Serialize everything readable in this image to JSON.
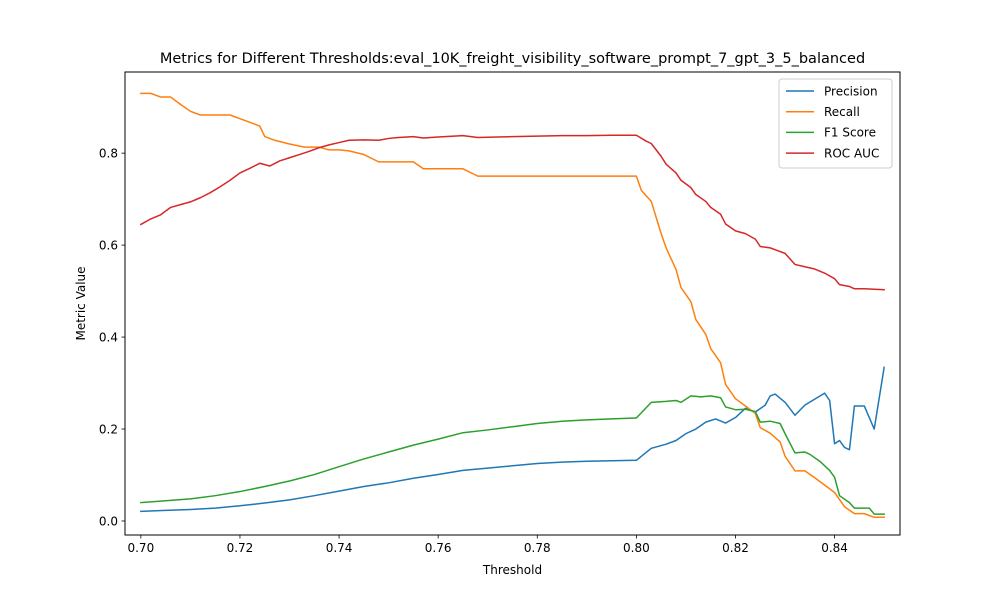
{
  "chart_data": {
    "type": "line",
    "title": "Metrics for Different Thresholds:eval_10K_freight_visibility_software_prompt_7_gpt_3_5_balanced",
    "xlabel": "Threshold",
    "ylabel": "Metric Value",
    "xlim": [
      0.6968,
      0.8532
    ],
    "ylim": [
      -0.0305,
      0.9765
    ],
    "xticks": [
      0.7,
      0.72,
      0.74,
      0.76,
      0.78,
      0.8,
      0.82,
      0.84
    ],
    "xtick_labels": [
      "0.70",
      "0.72",
      "0.74",
      "0.76",
      "0.78",
      "0.80",
      "0.82",
      "0.84"
    ],
    "yticks": [
      0.0,
      0.2,
      0.4,
      0.6,
      0.8
    ],
    "ytick_labels": [
      "0.0",
      "0.2",
      "0.4",
      "0.6",
      "0.8"
    ],
    "grid": false,
    "legend_position": "top-right",
    "series": [
      {
        "name": "Precision",
        "color": "#1f77b4",
        "points": [
          [
            0.7,
            0.021
          ],
          [
            0.705,
            0.023
          ],
          [
            0.71,
            0.025
          ],
          [
            0.715,
            0.028
          ],
          [
            0.72,
            0.033
          ],
          [
            0.725,
            0.039
          ],
          [
            0.73,
            0.046
          ],
          [
            0.735,
            0.055
          ],
          [
            0.74,
            0.065
          ],
          [
            0.745,
            0.075
          ],
          [
            0.75,
            0.083
          ],
          [
            0.755,
            0.093
          ],
          [
            0.76,
            0.101
          ],
          [
            0.765,
            0.11
          ],
          [
            0.77,
            0.115
          ],
          [
            0.775,
            0.12
          ],
          [
            0.78,
            0.125
          ],
          [
            0.785,
            0.128
          ],
          [
            0.79,
            0.13
          ],
          [
            0.795,
            0.131
          ],
          [
            0.8,
            0.132
          ],
          [
            0.803,
            0.158
          ],
          [
            0.806,
            0.167
          ],
          [
            0.808,
            0.175
          ],
          [
            0.81,
            0.19
          ],
          [
            0.812,
            0.2
          ],
          [
            0.814,
            0.215
          ],
          [
            0.816,
            0.222
          ],
          [
            0.818,
            0.213
          ],
          [
            0.82,
            0.225
          ],
          [
            0.822,
            0.245
          ],
          [
            0.824,
            0.237
          ],
          [
            0.826,
            0.252
          ],
          [
            0.827,
            0.272
          ],
          [
            0.828,
            0.276
          ],
          [
            0.83,
            0.258
          ],
          [
            0.832,
            0.23
          ],
          [
            0.834,
            0.252
          ],
          [
            0.836,
            0.265
          ],
          [
            0.838,
            0.278
          ],
          [
            0.839,
            0.262
          ],
          [
            0.84,
            0.168
          ],
          [
            0.841,
            0.175
          ],
          [
            0.842,
            0.16
          ],
          [
            0.843,
            0.155
          ],
          [
            0.844,
            0.25
          ],
          [
            0.846,
            0.25
          ],
          [
            0.848,
            0.2
          ],
          [
            0.85,
            0.334
          ]
        ]
      },
      {
        "name": "Recall",
        "color": "#ff7f0e",
        "points": [
          [
            0.7,
            0.93
          ],
          [
            0.702,
            0.93
          ],
          [
            0.704,
            0.922
          ],
          [
            0.706,
            0.922
          ],
          [
            0.708,
            0.906
          ],
          [
            0.71,
            0.891
          ],
          [
            0.712,
            0.883
          ],
          [
            0.714,
            0.883
          ],
          [
            0.718,
            0.883
          ],
          [
            0.72,
            0.875
          ],
          [
            0.722,
            0.867
          ],
          [
            0.724,
            0.859
          ],
          [
            0.725,
            0.836
          ],
          [
            0.727,
            0.828
          ],
          [
            0.73,
            0.82
          ],
          [
            0.733,
            0.813
          ],
          [
            0.736,
            0.813
          ],
          [
            0.738,
            0.807
          ],
          [
            0.74,
            0.807
          ],
          [
            0.742,
            0.805
          ],
          [
            0.745,
            0.797
          ],
          [
            0.748,
            0.781
          ],
          [
            0.752,
            0.781
          ],
          [
            0.755,
            0.781
          ],
          [
            0.757,
            0.766
          ],
          [
            0.762,
            0.766
          ],
          [
            0.765,
            0.766
          ],
          [
            0.768,
            0.75
          ],
          [
            0.772,
            0.75
          ],
          [
            0.78,
            0.75
          ],
          [
            0.79,
            0.75
          ],
          [
            0.8,
            0.75
          ],
          [
            0.801,
            0.719
          ],
          [
            0.803,
            0.695
          ],
          [
            0.805,
            0.625
          ],
          [
            0.806,
            0.594
          ],
          [
            0.808,
            0.547
          ],
          [
            0.809,
            0.508
          ],
          [
            0.811,
            0.477
          ],
          [
            0.812,
            0.438
          ],
          [
            0.814,
            0.406
          ],
          [
            0.815,
            0.375
          ],
          [
            0.817,
            0.344
          ],
          [
            0.818,
            0.297
          ],
          [
            0.82,
            0.266
          ],
          [
            0.822,
            0.25
          ],
          [
            0.824,
            0.234
          ],
          [
            0.825,
            0.203
          ],
          [
            0.827,
            0.191
          ],
          [
            0.829,
            0.172
          ],
          [
            0.83,
            0.141
          ],
          [
            0.832,
            0.109
          ],
          [
            0.834,
            0.109
          ],
          [
            0.836,
            0.094
          ],
          [
            0.838,
            0.078
          ],
          [
            0.84,
            0.062
          ],
          [
            0.842,
            0.031
          ],
          [
            0.844,
            0.016
          ],
          [
            0.846,
            0.016
          ],
          [
            0.848,
            0.008
          ],
          [
            0.85,
            0.008
          ]
        ]
      },
      {
        "name": "F1 Score",
        "color": "#2ca02c",
        "points": [
          [
            0.7,
            0.04
          ],
          [
            0.705,
            0.044
          ],
          [
            0.71,
            0.048
          ],
          [
            0.715,
            0.055
          ],
          [
            0.72,
            0.064
          ],
          [
            0.725,
            0.075
          ],
          [
            0.73,
            0.087
          ],
          [
            0.735,
            0.101
          ],
          [
            0.74,
            0.118
          ],
          [
            0.745,
            0.135
          ],
          [
            0.75,
            0.15
          ],
          [
            0.755,
            0.165
          ],
          [
            0.76,
            0.178
          ],
          [
            0.765,
            0.192
          ],
          [
            0.77,
            0.198
          ],
          [
            0.775,
            0.205
          ],
          [
            0.78,
            0.212
          ],
          [
            0.785,
            0.217
          ],
          [
            0.79,
            0.22
          ],
          [
            0.795,
            0.222
          ],
          [
            0.8,
            0.224
          ],
          [
            0.803,
            0.258
          ],
          [
            0.806,
            0.26
          ],
          [
            0.808,
            0.262
          ],
          [
            0.809,
            0.258
          ],
          [
            0.811,
            0.272
          ],
          [
            0.813,
            0.27
          ],
          [
            0.815,
            0.272
          ],
          [
            0.817,
            0.268
          ],
          [
            0.818,
            0.248
          ],
          [
            0.82,
            0.242
          ],
          [
            0.822,
            0.243
          ],
          [
            0.824,
            0.238
          ],
          [
            0.825,
            0.215
          ],
          [
            0.827,
            0.217
          ],
          [
            0.829,
            0.212
          ],
          [
            0.83,
            0.19
          ],
          [
            0.832,
            0.148
          ],
          [
            0.834,
            0.15
          ],
          [
            0.835,
            0.145
          ],
          [
            0.837,
            0.13
          ],
          [
            0.839,
            0.11
          ],
          [
            0.84,
            0.095
          ],
          [
            0.841,
            0.055
          ],
          [
            0.843,
            0.04
          ],
          [
            0.844,
            0.028
          ],
          [
            0.846,
            0.028
          ],
          [
            0.847,
            0.028
          ],
          [
            0.848,
            0.015
          ],
          [
            0.85,
            0.015
          ]
        ]
      },
      {
        "name": "ROC AUC",
        "color": "#d62728",
        "points": [
          [
            0.7,
            0.645
          ],
          [
            0.702,
            0.657
          ],
          [
            0.704,
            0.666
          ],
          [
            0.706,
            0.682
          ],
          [
            0.708,
            0.688
          ],
          [
            0.71,
            0.694
          ],
          [
            0.712,
            0.703
          ],
          [
            0.714,
            0.714
          ],
          [
            0.716,
            0.727
          ],
          [
            0.718,
            0.741
          ],
          [
            0.72,
            0.757
          ],
          [
            0.722,
            0.767
          ],
          [
            0.724,
            0.778
          ],
          [
            0.726,
            0.772
          ],
          [
            0.728,
            0.783
          ],
          [
            0.73,
            0.79
          ],
          [
            0.732,
            0.797
          ],
          [
            0.734,
            0.804
          ],
          [
            0.736,
            0.812
          ],
          [
            0.738,
            0.818
          ],
          [
            0.74,
            0.823
          ],
          [
            0.742,
            0.828
          ],
          [
            0.745,
            0.829
          ],
          [
            0.748,
            0.828
          ],
          [
            0.75,
            0.832
          ],
          [
            0.752,
            0.834
          ],
          [
            0.755,
            0.836
          ],
          [
            0.757,
            0.833
          ],
          [
            0.76,
            0.835
          ],
          [
            0.765,
            0.838
          ],
          [
            0.768,
            0.834
          ],
          [
            0.772,
            0.835
          ],
          [
            0.775,
            0.836
          ],
          [
            0.78,
            0.837
          ],
          [
            0.785,
            0.838
          ],
          [
            0.79,
            0.838
          ],
          [
            0.795,
            0.839
          ],
          [
            0.8,
            0.839
          ],
          [
            0.802,
            0.826
          ],
          [
            0.803,
            0.821
          ],
          [
            0.805,
            0.793
          ],
          [
            0.806,
            0.776
          ],
          [
            0.808,
            0.757
          ],
          [
            0.809,
            0.741
          ],
          [
            0.811,
            0.725
          ],
          [
            0.812,
            0.71
          ],
          [
            0.814,
            0.695
          ],
          [
            0.815,
            0.682
          ],
          [
            0.817,
            0.667
          ],
          [
            0.818,
            0.646
          ],
          [
            0.82,
            0.631
          ],
          [
            0.822,
            0.625
          ],
          [
            0.824,
            0.613
          ],
          [
            0.825,
            0.597
          ],
          [
            0.827,
            0.594
          ],
          [
            0.828,
            0.59
          ],
          [
            0.83,
            0.582
          ],
          [
            0.832,
            0.558
          ],
          [
            0.834,
            0.553
          ],
          [
            0.836,
            0.548
          ],
          [
            0.838,
            0.539
          ],
          [
            0.84,
            0.527
          ],
          [
            0.841,
            0.514
          ],
          [
            0.843,
            0.51
          ],
          [
            0.844,
            0.505
          ],
          [
            0.846,
            0.505
          ],
          [
            0.848,
            0.504
          ],
          [
            0.85,
            0.503
          ]
        ]
      }
    ]
  }
}
